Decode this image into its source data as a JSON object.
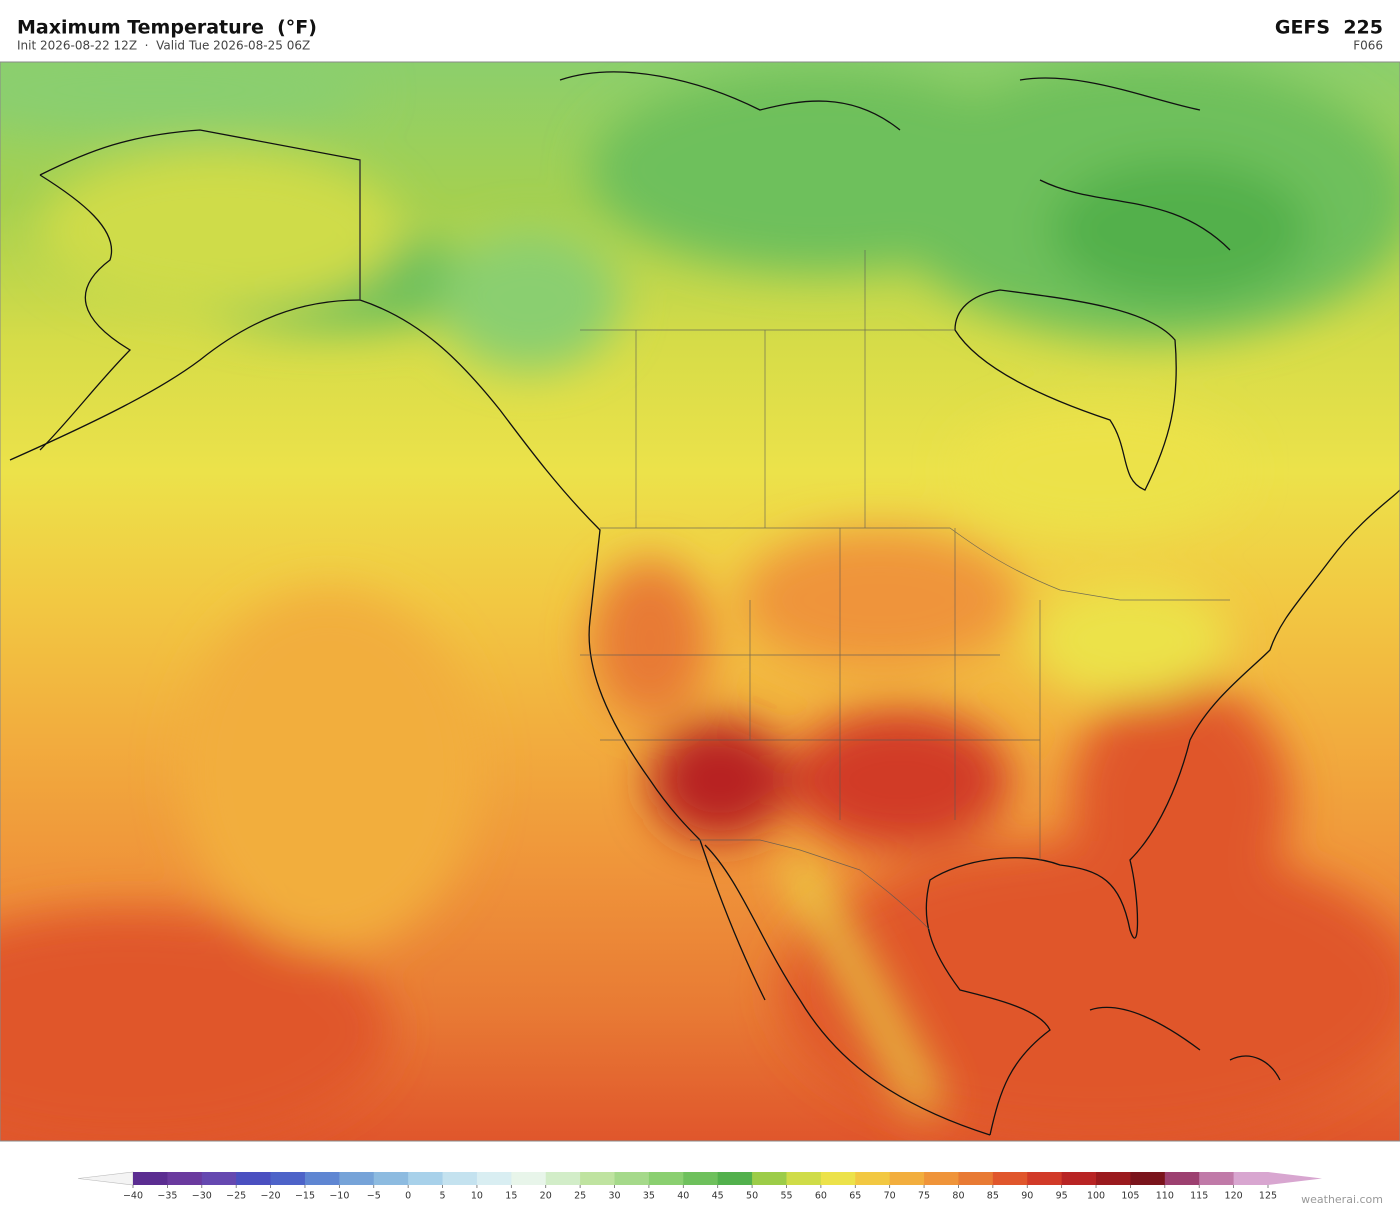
{
  "header": {
    "title": "Maximum Temperature  (°F)",
    "subtitle": "Init 2026-08-22 12Z  ·  Valid Tue 2026-08-25 06Z",
    "model": "GEFS  225",
    "forecast_hour": "F066"
  },
  "colorbar": {
    "ticks": [
      {
        "value": -40,
        "label": "−40"
      },
      {
        "value": -35,
        "label": "−35"
      },
      {
        "value": -30,
        "label": "−30"
      },
      {
        "value": -25,
        "label": "−25"
      },
      {
        "value": -20,
        "label": "−20"
      },
      {
        "value": -15,
        "label": "−15"
      },
      {
        "value": -10,
        "label": "−10"
      },
      {
        "value": -5,
        "label": "−5"
      },
      0,
      5,
      10,
      15,
      20,
      25,
      30,
      35,
      40,
      45,
      50,
      55,
      60,
      65,
      70,
      75,
      80,
      85,
      90,
      95,
      100,
      105,
      110,
      115,
      120,
      125
    ],
    "colors": [
      "#5b2d91",
      "#6a3a9e",
      "#6548b0",
      "#4a4fc0",
      "#4d63c8",
      "#5f86d2",
      "#76a3d8",
      "#8dbbe0",
      "#a8d1ea",
      "#c4e2ef",
      "#d9eef2",
      "#e8f5ea",
      "#d2edc8",
      "#bfe3a0",
      "#a5d98a",
      "#8acf70",
      "#6ec05c",
      "#52b04c",
      "#9ccc48",
      "#cfdc48",
      "#ece24a",
      "#f2c842",
      "#f2ae3e",
      "#ef943a",
      "#e87a34",
      "#e0562c",
      "#d13a28",
      "#b82424",
      "#9a1a1e",
      "#7a141c",
      "#9c4070",
      "#c07aa8",
      "#d8a6d0"
    ],
    "under_color": "#f4f4f4",
    "over_color": "#d8a6d0"
  },
  "footer": {
    "watermark": "weatherai.com"
  }
}
